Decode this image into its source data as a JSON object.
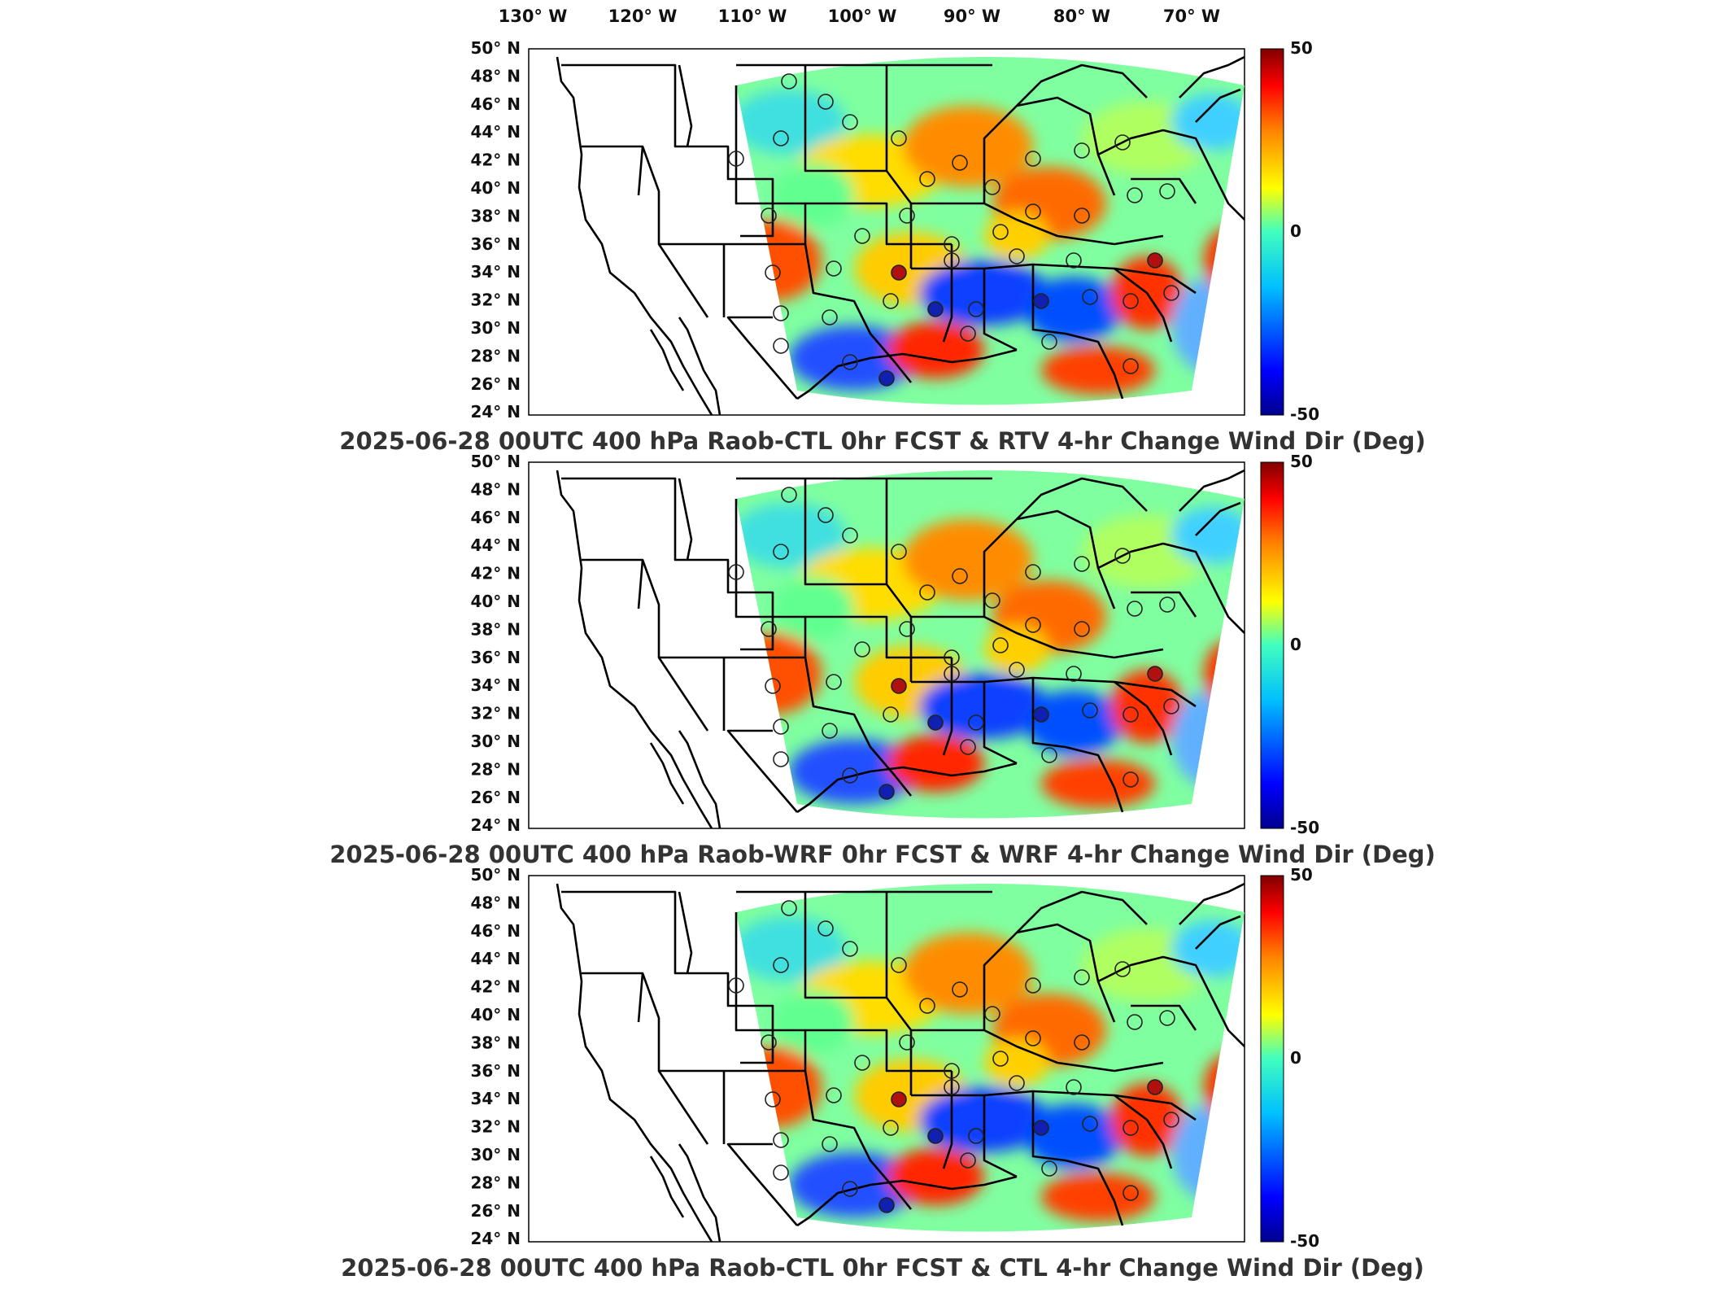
{
  "top_lon_labels": [
    "130° W",
    "120° W",
    "110° W",
    "100° W",
    "90° W",
    "80° W",
    "70° W"
  ],
  "lat_labels": [
    "50° N",
    "48° N",
    "46° N",
    "44° N",
    "42° N",
    "40° N",
    "38° N",
    "36° N",
    "34° N",
    "32° N",
    "30° N",
    "28° N",
    "26° N",
    "24° N"
  ],
  "colorbar": {
    "max_label": "50",
    "mid_label": "0",
    "min_label": "-50",
    "colors": [
      "#00008f",
      "#0000ff",
      "#00bfff",
      "#40ffbf",
      "#ffff00",
      "#ff8000",
      "#ff0000",
      "#800000"
    ]
  },
  "panels": [
    {
      "title": "2025-06-28 00UTC 400 hPa Raob-CTL 0hr FCST & RTV 4-hr Change Wind Dir (Deg)"
    },
    {
      "title": "2025-06-28 00UTC 400 hPa Raob-WRF 0hr FCST & WRF 4-hr Change Wind Dir (Deg)"
    },
    {
      "title": "2025-06-28 00UTC 400 hPa Raob-CTL 0hr FCST & CTL 4-hr Change Wind Dir (Deg)"
    }
  ]
}
